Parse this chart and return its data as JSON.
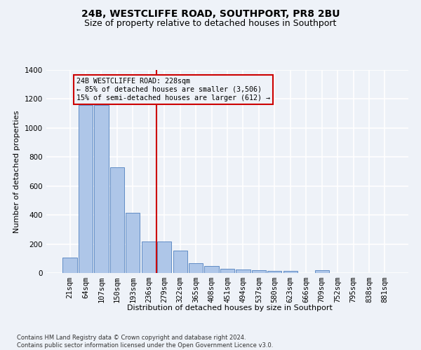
{
  "title": "24B, WESTCLIFFE ROAD, SOUTHPORT, PR8 2BU",
  "subtitle": "Size of property relative to detached houses in Southport",
  "xlabel": "Distribution of detached houses by size in Southport",
  "ylabel": "Number of detached properties",
  "categories": [
    "21sqm",
    "64sqm",
    "107sqm",
    "150sqm",
    "193sqm",
    "236sqm",
    "279sqm",
    "322sqm",
    "365sqm",
    "408sqm",
    "451sqm",
    "494sqm",
    "537sqm",
    "580sqm",
    "623sqm",
    "666sqm",
    "709sqm",
    "752sqm",
    "795sqm",
    "838sqm",
    "881sqm"
  ],
  "values": [
    107,
    1160,
    1160,
    730,
    415,
    215,
    215,
    155,
    70,
    50,
    30,
    25,
    17,
    15,
    15,
    0,
    18,
    0,
    0,
    0,
    0
  ],
  "bar_color": "#aec6e8",
  "bar_edge_color": "#4f7fbf",
  "property_line_x": 5.5,
  "property_line_color": "#cc0000",
  "annotation_text": "24B WESTCLIFFE ROAD: 228sqm\n← 85% of detached houses are smaller (3,506)\n15% of semi-detached houses are larger (612) →",
  "annotation_box_color": "#cc0000",
  "ylim": [
    0,
    1400
  ],
  "yticks": [
    0,
    200,
    400,
    600,
    800,
    1000,
    1200,
    1400
  ],
  "footnote": "Contains HM Land Registry data © Crown copyright and database right 2024.\nContains public sector information licensed under the Open Government Licence v3.0.",
  "background_color": "#eef2f8",
  "grid_color": "#ffffff",
  "title_fontsize": 10,
  "subtitle_fontsize": 9,
  "label_fontsize": 8,
  "tick_fontsize": 7.5,
  "footnote_fontsize": 6
}
